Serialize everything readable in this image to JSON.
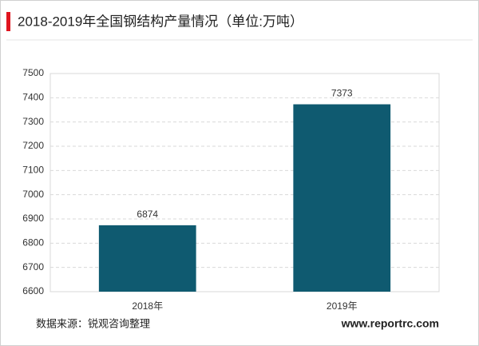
{
  "chart_data": {
    "type": "bar",
    "title": "2018-2019年全国钢结构产量情况（单位:万吨）",
    "categories": [
      "2018年",
      "2019年"
    ],
    "values": [
      6874,
      7373
    ],
    "color": "#0f5a70",
    "ylim": [
      6600,
      7500
    ],
    "yticks": [
      6600,
      6700,
      6800,
      6900,
      7000,
      7100,
      7200,
      7300,
      7400,
      7500
    ],
    "grid": true,
    "source": "数据来源：锐观咨询整理",
    "website": "www.reportrc.com"
  }
}
